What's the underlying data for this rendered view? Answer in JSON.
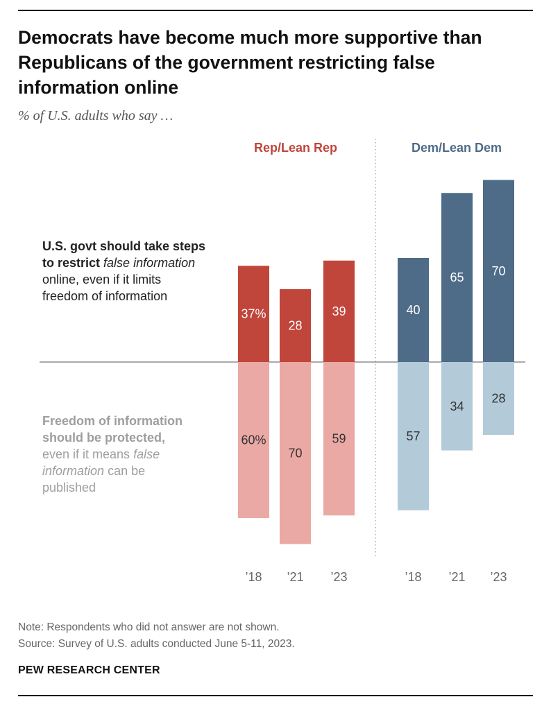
{
  "title": "Democrats have become much more supportive than Republicans of the government restricting false information online",
  "subtitle": "% of U.S. adults who say …",
  "labels": {
    "top_bold_1": "U.S. govt should take steps",
    "top_bold_2": "to restrict",
    "top_italic": "false information",
    "top_rest_1": "online, even if it limits",
    "top_rest_2": "freedom of information",
    "bottom_bold_1": "Freedom of information",
    "bottom_bold_2": "should be protected,",
    "bottom_rest_1": "even if it means",
    "bottom_italic_1": "false",
    "bottom_italic_2": "information",
    "bottom_rest_2": "can be",
    "bottom_rest_3": "published"
  },
  "note": "Note: Respondents who did not answer are not shown.",
  "source": "Source: Survey of U.S. adults conducted June 5-11, 2023.",
  "brand": "PEW RESEARCH CENTER",
  "colors": {
    "rep_dark": "#c0453a",
    "rep_light": "#eba9a5",
    "dem_dark": "#4e6b87",
    "dem_light": "#b3cad9"
  },
  "chart_data": {
    "type": "bar",
    "description_note": "",
    "categories": [
      "’18",
      "’21",
      "’23"
    ],
    "groups": [
      {
        "name": "Rep/Lean Rep",
        "restrict": [
          37,
          28,
          39
        ],
        "restrict_labels": [
          "37%",
          "28",
          "39"
        ],
        "protect": [
          60,
          70,
          59
        ],
        "protect_labels": [
          "60%",
          "70",
          "59"
        ]
      },
      {
        "name": "Dem/Lean Dem",
        "restrict": [
          40,
          65,
          70
        ],
        "restrict_labels": [
          "40",
          "65",
          "70"
        ],
        "protect": [
          57,
          34,
          28
        ],
        "protect_labels": [
          "57",
          "34",
          "28"
        ]
      }
    ]
  }
}
